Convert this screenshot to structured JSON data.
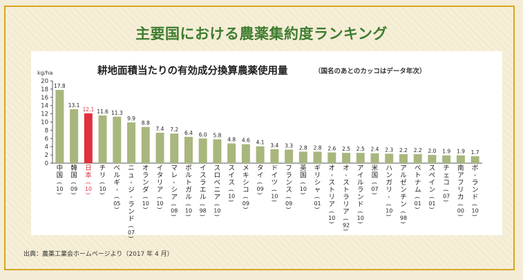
{
  "banner": {
    "title": "主要国における農薬集約度ランキング"
  },
  "source_note": "出典：農薬工業会ホームページより（2017 年 4 月）",
  "colors": {
    "bar": "#a8b77d",
    "highlight_bar": "#e0323e",
    "highlight_text": "#e0323e",
    "border": "#d9a520",
    "banner_text": "#3e7c30"
  },
  "chart_data": {
    "type": "bar",
    "title": "耕地面積当たりの有効成分換算農薬使用量",
    "subtitle": "（国名のあとのカッコはデータ年次）",
    "ylabel": "kg/ha",
    "ylim": [
      0,
      20
    ],
    "yticks": [
      0,
      2,
      4,
      6,
      8,
      10,
      12,
      14,
      16,
      18,
      20
    ],
    "grid": false,
    "highlight_index": 2,
    "categories": [
      {
        "country": "中国",
        "year": "10"
      },
      {
        "country": "韓国",
        "year": "09"
      },
      {
        "country": "日本",
        "year": "10"
      },
      {
        "country": "チリ",
        "year": "10"
      },
      {
        "country": "ベルギー",
        "year": "05"
      },
      {
        "country": "ニュージーランド",
        "year": "07"
      },
      {
        "country": "オランダ",
        "year": "10"
      },
      {
        "country": "イタリア",
        "year": "10"
      },
      {
        "country": "マレーシア",
        "year": "08"
      },
      {
        "country": "ポルトガル",
        "year": "10"
      },
      {
        "country": "イスラエル",
        "year": "98"
      },
      {
        "country": "スロベニア",
        "year": "10"
      },
      {
        "country": "スイス",
        "year": "10"
      },
      {
        "country": "メキシコ",
        "year": "09"
      },
      {
        "country": "タイ",
        "year": "09"
      },
      {
        "country": "ドイツ",
        "year": "10"
      },
      {
        "country": "フランス",
        "year": "09"
      },
      {
        "country": "英国",
        "year": "10"
      },
      {
        "country": "ギリシャ",
        "year": "01"
      },
      {
        "country": "オーストリア",
        "year": "10"
      },
      {
        "country": "オーストラリア",
        "year": "92"
      },
      {
        "country": "アイルランド",
        "year": "10"
      },
      {
        "country": "米国",
        "year": "07"
      },
      {
        "country": "ハンガリー",
        "year": "10"
      },
      {
        "country": "アルゼンチン",
        "year": "98"
      },
      {
        "country": "ベトナム",
        "year": "01"
      },
      {
        "country": "スペイン",
        "year": "01"
      },
      {
        "country": "チェコ",
        "year": "07"
      },
      {
        "country": "南アフリカ",
        "year": "00"
      },
      {
        "country": "ポーランド",
        "year": "10"
      }
    ],
    "values": [
      17.8,
      13.1,
      12.1,
      11.6,
      11.3,
      9.9,
      8.8,
      7.4,
      7.2,
      6.4,
      6.0,
      5.8,
      4.8,
      4.6,
      4.1,
      3.4,
      3.3,
      2.8,
      2.8,
      2.6,
      2.5,
      2.5,
      2.4,
      2.3,
      2.2,
      2.2,
      2.0,
      1.9,
      1.9,
      1.7
    ]
  }
}
